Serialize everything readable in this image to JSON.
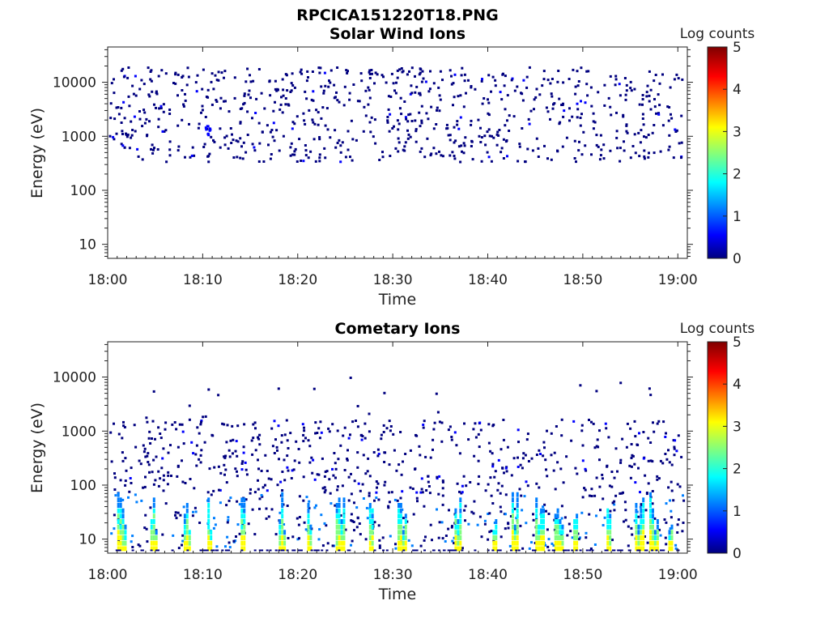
{
  "figure": {
    "title": "RPCICA151220T18.PNG"
  },
  "colors": {
    "colormap": [
      "#00007f",
      "#0000ff",
      "#007fff",
      "#00ffff",
      "#7fff7f",
      "#ffff00",
      "#ff7f00",
      "#ff0000",
      "#7f0000"
    ],
    "axis": "#222222",
    "background": "#ffffff"
  },
  "chart_data": [
    {
      "type": "heatmap",
      "title": "Solar Wind Ions",
      "xlabel": "Time",
      "ylabel": "Energy (eV)",
      "x_range": [
        "18:00",
        "19:01"
      ],
      "x_ticks": [
        "18:00",
        "18:10",
        "18:20",
        "18:30",
        "18:40",
        "18:50",
        "19:00"
      ],
      "y_scale": "log",
      "y_range": [
        5.5,
        45000
      ],
      "y_ticks": [
        "10",
        "100",
        "1000",
        "10000"
      ],
      "colorbar": {
        "label": "Log counts",
        "range": [
          0,
          5
        ],
        "ticks": [
          "0",
          "1",
          "2",
          "3",
          "4",
          "5"
        ]
      },
      "grid": false,
      "pattern": "sparse scatter of low counts (log ~0-0.5) between ~300 eV and ~20000 eV throughout the hour"
    },
    {
      "type": "heatmap",
      "title": "Cometary Ions",
      "xlabel": "Time",
      "ylabel": "Energy (eV)",
      "x_range": [
        "18:00",
        "19:01"
      ],
      "x_ticks": [
        "18:00",
        "18:10",
        "18:20",
        "18:30",
        "18:40",
        "18:50",
        "19:00"
      ],
      "y_scale": "log",
      "y_range": [
        5.5,
        45000
      ],
      "y_ticks": [
        "10",
        "100",
        "1000",
        "10000"
      ],
      "colorbar": {
        "label": "Log counts",
        "range": [
          0,
          5
        ],
        "ticks": [
          "0",
          "1",
          "2",
          "3",
          "4",
          "5"
        ]
      },
      "grid": false,
      "pattern": "periodic bursts of higher counts (log ~2-3) below ~100 eV, sparse low counts up to ~10000 eV",
      "burst_times_min": [
        1,
        4.5,
        8,
        10.5,
        14,
        18,
        21,
        24,
        27.5,
        30.5,
        36.5,
        40.5,
        42.5,
        45,
        47,
        49,
        52.5,
        55.5,
        57,
        59
      ]
    }
  ]
}
